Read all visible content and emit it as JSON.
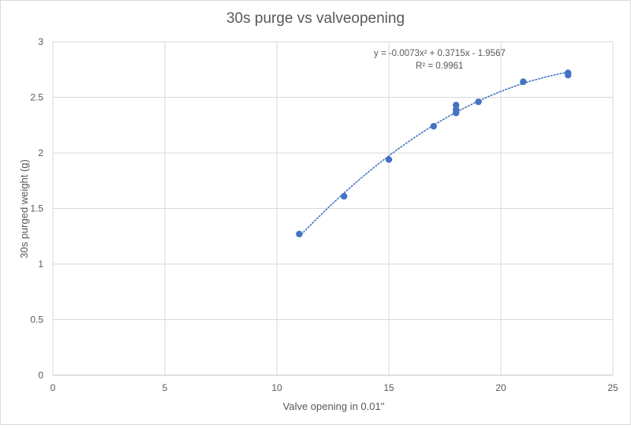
{
  "chart_data": {
    "type": "scatter",
    "title": "30s purge vs valveopening",
    "xlabel": "Valve opening in 0.01\"",
    "ylabel": "30s purged weight (g)",
    "xlim": [
      0,
      25
    ],
    "ylim": [
      0,
      3
    ],
    "x_ticks": [
      0,
      5,
      10,
      15,
      20,
      25
    ],
    "y_ticks": [
      0,
      0.5,
      1,
      1.5,
      2,
      2.5,
      3
    ],
    "grid": true,
    "series": [
      {
        "color": "#4472c4",
        "points": [
          {
            "x": 11,
            "y": 1.27
          },
          {
            "x": 13,
            "y": 1.61
          },
          {
            "x": 15,
            "y": 1.94
          },
          {
            "x": 17,
            "y": 2.24
          },
          {
            "x": 18,
            "y": 2.43
          },
          {
            "x": 18,
            "y": 2.39
          },
          {
            "x": 18,
            "y": 2.36
          },
          {
            "x": 19,
            "y": 2.46
          },
          {
            "x": 21,
            "y": 2.64
          },
          {
            "x": 23,
            "y": 2.72
          },
          {
            "x": 23,
            "y": 2.7
          }
        ]
      }
    ],
    "trendline": {
      "type": "polynomial",
      "order": 2,
      "coefficients": [
        -0.0073,
        0.3715,
        -1.9567
      ],
      "x_range": [
        11,
        23
      ],
      "style": "dotted",
      "color": "#4472c4",
      "equation_text": "y = -0.0073x² + 0.3715x - 1.9567",
      "r2_text": "R² = 0.9961"
    }
  }
}
